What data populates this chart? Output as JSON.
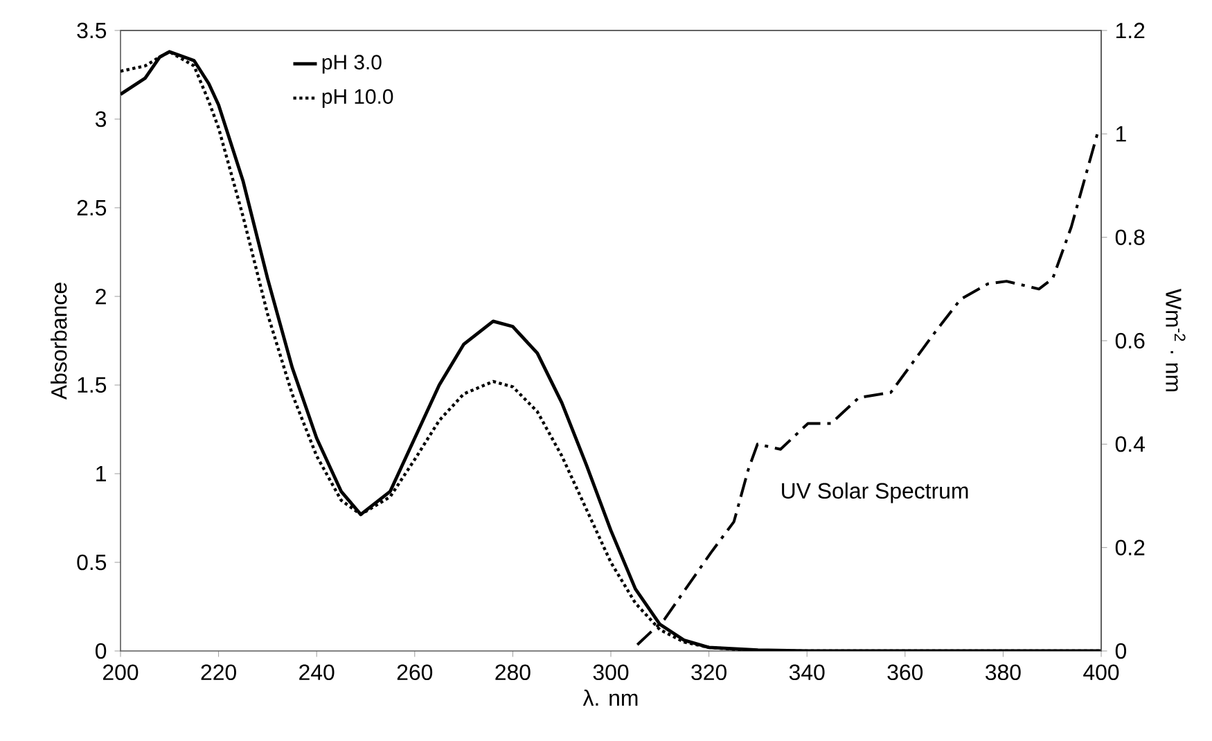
{
  "chart_data": {
    "type": "line",
    "xlabel": "λ. nm",
    "ylabel": "Absorbance",
    "y2label": "Wm$^{-2}$ · nm",
    "x": [
      200,
      205,
      208,
      210,
      215,
      218,
      220,
      225,
      230,
      235,
      240,
      245,
      249,
      255,
      260,
      265,
      270,
      276,
      280,
      285,
      290,
      295,
      300,
      305,
      310,
      315,
      320,
      330,
      340,
      360,
      380,
      400
    ],
    "series": [
      {
        "name": "pH 3.0",
        "color": "#000000",
        "line_style": "solid",
        "values": [
          3.14,
          3.23,
          3.35,
          3.38,
          3.33,
          3.2,
          3.08,
          2.65,
          2.1,
          1.6,
          1.2,
          0.9,
          0.77,
          0.9,
          1.2,
          1.5,
          1.73,
          1.86,
          1.83,
          1.68,
          1.4,
          1.05,
          0.68,
          0.35,
          0.15,
          0.06,
          0.02,
          0.005,
          0,
          0,
          0,
          0
        ]
      },
      {
        "name": "pH 10.0",
        "color": "#000000",
        "line_style": "dotted",
        "values": [
          3.27,
          3.3,
          3.35,
          3.38,
          3.3,
          3.1,
          2.95,
          2.45,
          1.9,
          1.45,
          1.1,
          0.85,
          0.77,
          0.87,
          1.08,
          1.3,
          1.45,
          1.52,
          1.49,
          1.35,
          1.1,
          0.8,
          0.5,
          0.27,
          0.12,
          0.05,
          0.02,
          0,
          0,
          0,
          0,
          0
        ]
      },
      {
        "name": "UV Solar Spectrum",
        "color": "#000000",
        "line_style": "dashdot",
        "axis": "y2",
        "x": [
          305.4,
          311,
          320.4,
          325.1,
          328,
          329.9,
          334.6,
          340.2,
          344.9,
          350.6,
          357.1,
          365.6,
          371.3,
          376.9,
          380.7,
          387.3,
          390.1,
          393.9,
          399.5
        ],
        "values": [
          0.012,
          0.062,
          0.19,
          0.25,
          0.35,
          0.4,
          0.39,
          0.44,
          0.44,
          0.49,
          0.5,
          0.61,
          0.68,
          0.71,
          0.715,
          0.7,
          0.72,
          0.82,
          1.01
        ]
      }
    ],
    "xlim": [
      200,
      400
    ],
    "xticks": [
      200,
      220,
      240,
      260,
      280,
      300,
      320,
      340,
      360,
      380,
      400
    ],
    "ylim": [
      0,
      3.5
    ],
    "yticks": [
      0,
      0.5,
      1,
      1.5,
      2,
      2.5,
      3,
      3.5
    ],
    "y2lim": [
      0,
      1.2
    ],
    "y2ticks": [
      0,
      0.2,
      0.4,
      0.6,
      0.8,
      1,
      1.2
    ],
    "legend": "top left",
    "marker": "none"
  }
}
